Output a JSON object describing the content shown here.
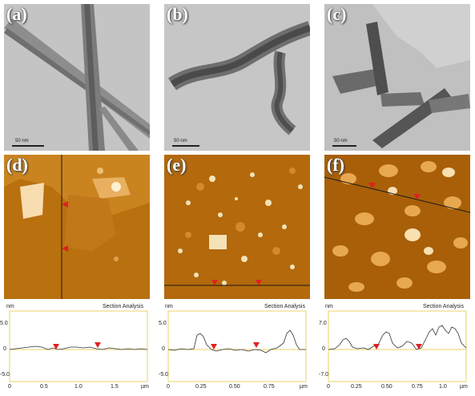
{
  "panels": {
    "a": {
      "label": "(a)",
      "scale": "50 nm"
    },
    "b": {
      "label": "(b)",
      "scale": "50 nm"
    },
    "c": {
      "label": "(c)",
      "scale": "50 nm"
    },
    "d": {
      "label": "(d)"
    },
    "e": {
      "label": "(e)"
    },
    "f": {
      "label": "(f)"
    }
  },
  "graphs": [
    {
      "unit": "nm",
      "title": "Section Analysis",
      "xunit": "µm",
      "yticks": [
        "5.0",
        "0",
        "-5.0"
      ],
      "xticks": [
        "0",
        "0.5",
        "1.0",
        "1.5"
      ]
    },
    {
      "unit": "nm",
      "title": "Section Analysis",
      "xunit": "µm",
      "yticks": [
        "5.0",
        "0",
        "-5.0"
      ],
      "xticks": [
        "0",
        "0.25",
        "0.50",
        "0.75"
      ]
    },
    {
      "unit": "nm",
      "title": "Section Analysis",
      "xunit": "µm",
      "yticks": [
        "7.0",
        "0",
        "-7.0"
      ],
      "xticks": [
        "0",
        "0.25",
        "0.50",
        "0.75",
        "1.0"
      ]
    }
  ],
  "colors": {
    "marker": "#e02020",
    "afm_base": "#b86a10",
    "tem_base": "#bdbdbd"
  }
}
